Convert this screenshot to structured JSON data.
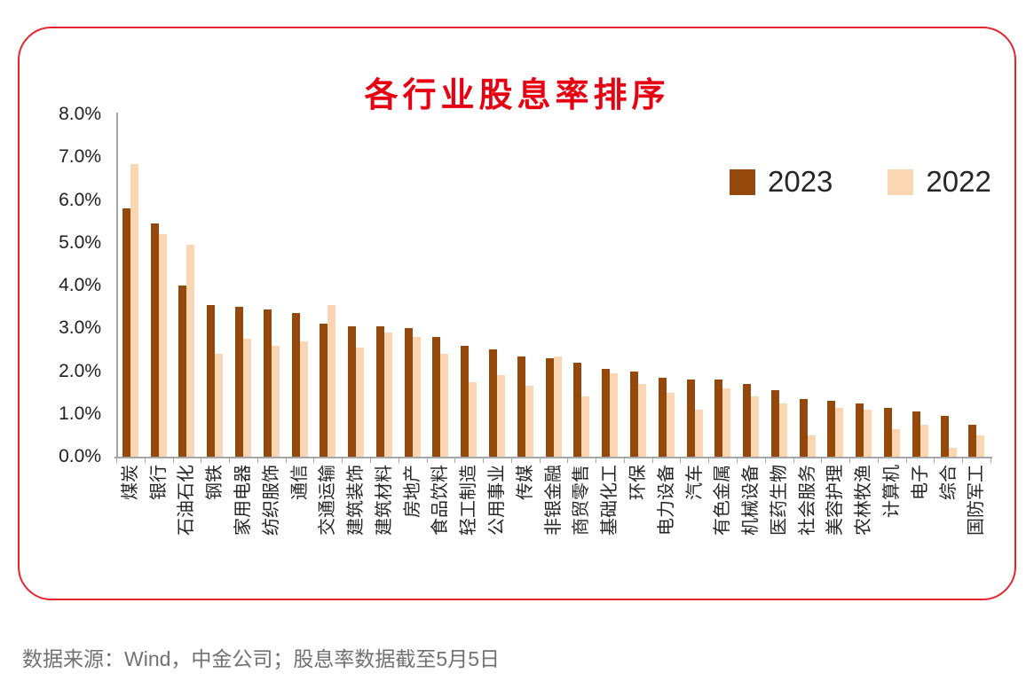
{
  "card": {
    "title": "各行业股息率排序",
    "title_color": "#e60012",
    "border_color": "#e6242e"
  },
  "chart_data": {
    "type": "bar",
    "title": "各行业股息率排序",
    "xlabel": "",
    "ylabel": "",
    "ylim": [
      0,
      8
    ],
    "grid": false,
    "legend_position": "upper right",
    "value_unit": "%",
    "categories": [
      "煤炭",
      "银行",
      "石油石化",
      "钢铁",
      "家用电器",
      "纺织服饰",
      "通信",
      "交通运输",
      "建筑装饰",
      "建筑材料",
      "房地产",
      "食品饮料",
      "轻工制造",
      "公用事业",
      "传媒",
      "非银金融",
      "商贸零售",
      "基础化工",
      "环保",
      "电力设备",
      "汽车",
      "有色金属",
      "机械设备",
      "医药生物",
      "社会服务",
      "美容护理",
      "农林牧渔",
      "计算机",
      "电子",
      "综合",
      "国防军工"
    ],
    "series": [
      {
        "name": "2023",
        "color": "#95480c",
        "values": [
          5.8,
          5.45,
          4.0,
          3.55,
          3.5,
          3.45,
          3.35,
          3.1,
          3.05,
          3.05,
          3.0,
          2.8,
          2.6,
          2.5,
          2.35,
          2.3,
          2.2,
          2.05,
          2.0,
          1.85,
          1.8,
          1.8,
          1.7,
          1.55,
          1.35,
          1.3,
          1.25,
          1.15,
          1.05,
          0.95,
          0.75
        ]
      },
      {
        "name": "2022",
        "color": "#fad6b3",
        "values": [
          6.85,
          5.2,
          4.95,
          2.4,
          2.75,
          2.6,
          2.7,
          3.55,
          2.55,
          2.9,
          2.8,
          2.4,
          1.75,
          1.9,
          1.65,
          2.35,
          1.4,
          1.95,
          1.7,
          1.5,
          1.1,
          1.6,
          1.4,
          1.25,
          0.5,
          1.15,
          1.1,
          0.65,
          0.75,
          0.2,
          0.5
        ]
      }
    ],
    "ytick_labels": [
      "8.0%",
      "7.0%",
      "6.0%",
      "5.0%",
      "4.0%",
      "3.0%",
      "2.0%",
      "1.0%",
      "0.0%"
    ],
    "ytick_values": [
      8,
      7,
      6,
      5,
      4,
      3,
      2,
      1,
      0
    ]
  },
  "footer": {
    "source_note": "数据来源：Wind，中金公司；股息率数据截至5月5日"
  }
}
